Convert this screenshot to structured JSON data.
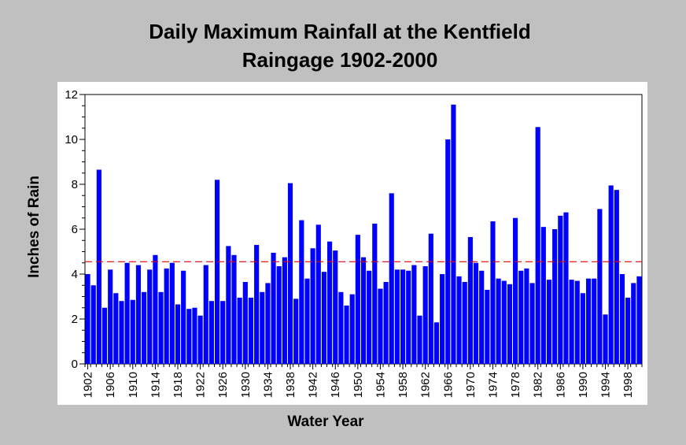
{
  "chart_data": {
    "type": "bar",
    "title_lines": [
      "Daily Maximum Rainfall at the Kentfield",
      "Raingage 1902-2000"
    ],
    "xlabel": "Water Year",
    "ylabel": "Inches of Rain",
    "ylim": [
      0,
      12
    ],
    "yticks": [
      "0",
      "2",
      "4",
      "6",
      "8",
      "10",
      "12"
    ],
    "xticks": [
      "1902",
      "1906",
      "1910",
      "1914",
      "1918",
      "1922",
      "1926",
      "1930",
      "1934",
      "1938",
      "1942",
      "1946",
      "1950",
      "1954",
      "1958",
      "1962",
      "1966",
      "1970",
      "1974",
      "1978",
      "1982",
      "1986",
      "1990",
      "1994",
      "1998"
    ],
    "grid": false,
    "bar_color": "#0000ff",
    "plot_background": "#ffffff",
    "reference_line": {
      "value": 4.55,
      "color": "#e00000",
      "style": "dashed"
    },
    "x_start": 1902,
    "values": [
      4.0,
      3.5,
      8.65,
      2.5,
      4.2,
      3.15,
      2.8,
      4.5,
      2.85,
      4.4,
      3.2,
      4.2,
      4.85,
      3.2,
      4.25,
      4.5,
      2.65,
      4.15,
      2.45,
      2.5,
      2.15,
      4.4,
      2.8,
      8.2,
      2.8,
      5.25,
      4.85,
      2.95,
      3.65,
      2.95,
      5.3,
      3.2,
      3.6,
      4.95,
      4.35,
      4.75,
      8.05,
      2.9,
      6.4,
      3.8,
      5.15,
      6.2,
      4.1,
      5.45,
      5.05,
      3.2,
      2.6,
      3.1,
      5.75,
      4.75,
      4.15,
      6.25,
      3.35,
      3.65,
      7.6,
      4.2,
      4.2,
      4.15,
      4.4,
      2.15,
      4.35,
      5.8,
      1.85,
      4.0,
      10.0,
      11.55,
      3.9,
      3.65,
      5.65,
      4.5,
      4.15,
      3.3,
      6.35,
      3.8,
      3.7,
      3.55,
      6.5,
      4.15,
      4.25,
      3.6,
      10.55,
      6.1,
      3.75,
      6.0,
      6.6,
      6.75,
      3.75,
      3.7,
      3.15,
      3.8,
      3.8,
      6.9,
      2.2,
      7.95,
      7.75,
      4.0,
      2.95,
      3.6,
      3.9
    ]
  }
}
